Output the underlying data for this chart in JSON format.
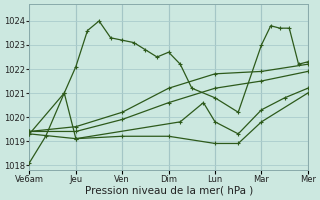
{
  "background_color": "#cce8e0",
  "grid_color": "#aacccc",
  "line_color": "#2d5a1b",
  "xlabel": "Pression niveau de la mer( hPa )",
  "xlabel_fontsize": 7.5,
  "ylim": [
    1017.8,
    1024.7
  ],
  "yticks": [
    1018,
    1019,
    1020,
    1021,
    1022,
    1023,
    1024
  ],
  "xtick_labels": [
    "Ve6am",
    "Jeu",
    "Ven",
    "Dim",
    "Lun",
    "Mar",
    "Mer"
  ],
  "xtick_positions": [
    0,
    2,
    4,
    6,
    8,
    10,
    12
  ],
  "series1_x": [
    0,
    0.7,
    1.5,
    2.0,
    2.5,
    3.0,
    3.5,
    4.0,
    4.5,
    5.0,
    5.5,
    6.0,
    6.5,
    7.0,
    8.0,
    9.0,
    10.0,
    10.4,
    10.8,
    11.2,
    11.6,
    12.0
  ],
  "series1_y": [
    1018.1,
    1019.2,
    1021.0,
    1022.1,
    1023.6,
    1024.0,
    1023.3,
    1023.2,
    1023.1,
    1022.8,
    1022.5,
    1022.7,
    1022.2,
    1021.2,
    1020.8,
    1020.2,
    1023.0,
    1023.8,
    1023.7,
    1023.7,
    1022.2,
    1022.3
  ],
  "series2_x": [
    0,
    2,
    4,
    6,
    8,
    10,
    12
  ],
  "series2_y": [
    1019.4,
    1019.6,
    1020.2,
    1021.2,
    1021.8,
    1021.9,
    1022.2
  ],
  "series3_x": [
    0,
    2,
    4,
    6,
    8,
    10,
    12
  ],
  "series3_y": [
    1019.4,
    1019.4,
    1019.9,
    1020.6,
    1021.2,
    1021.5,
    1021.9
  ],
  "series4_x": [
    0,
    2,
    4,
    6,
    8,
    9.0,
    10,
    12
  ],
  "series4_y": [
    1019.3,
    1019.1,
    1019.2,
    1019.2,
    1018.9,
    1018.9,
    1019.8,
    1021.0
  ],
  "series5_x": [
    0,
    1.5,
    2.0,
    6.5,
    7.5,
    8.0,
    9.0,
    10.0,
    11.0,
    12.0
  ],
  "series5_y": [
    1019.3,
    1021.0,
    1019.1,
    1019.8,
    1020.6,
    1019.8,
    1019.3,
    1020.3,
    1020.8,
    1021.2
  ]
}
